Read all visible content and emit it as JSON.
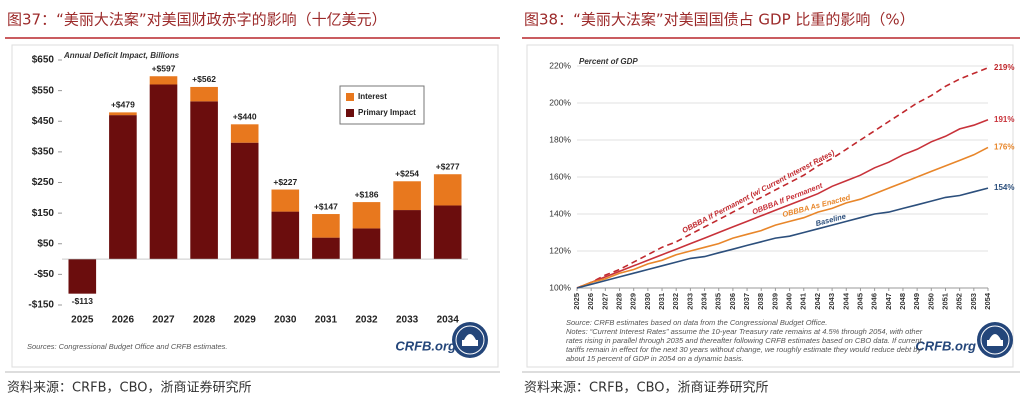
{
  "chart_data": [
    {
      "type": "bar",
      "title": "图37：“美丽大法案”对美国财政赤字的影响（十亿美元）",
      "subtitle": "Annual Deficit Impact, Billions",
      "categories": [
        "2025",
        "2026",
        "2027",
        "2028",
        "2029",
        "2030",
        "2031",
        "2032",
        "2033",
        "2034"
      ],
      "series": [
        {
          "name": "Primary Impact",
          "color": "#6b0d0d",
          "values": [
            -113,
            470,
            570,
            515,
            380,
            155,
            70,
            100,
            160,
            175
          ]
        },
        {
          "name": "Interest",
          "color": "#e8781e",
          "values": [
            0,
            9,
            27,
            47,
            60,
            72,
            77,
            86,
            94,
            102
          ]
        }
      ],
      "totals": [
        -113,
        479,
        597,
        562,
        440,
        227,
        147,
        186,
        254,
        277
      ],
      "total_labels": [
        "-$113",
        "+$479",
        "+$597",
        "+$562",
        "+$440",
        "+$227",
        "+$147",
        "+$186",
        "+$254",
        "+$277"
      ],
      "ylim": [
        -150,
        650
      ],
      "yticks": [
        {
          "value": -150,
          "label": "-$150"
        },
        {
          "value": -50,
          "label": "-$50"
        },
        {
          "value": 50,
          "label": "$50"
        },
        {
          "value": 150,
          "label": "$150"
        },
        {
          "value": 250,
          "label": "$250"
        },
        {
          "value": 350,
          "label": "$350"
        },
        {
          "value": 450,
          "label": "$450"
        },
        {
          "value": 550,
          "label": "$550"
        },
        {
          "value": 650,
          "label": "$650"
        }
      ],
      "grid": false,
      "legend": "upper right",
      "source": "Sources: Congressional Budget Office and CRFB estimates.",
      "logo": "CRFB.org",
      "footer": "资料来源：CRFB，CBO，浙商证券研究所"
    },
    {
      "type": "line",
      "title": "图38：“美丽大法案”对美国国债占 GDP 比重的影响（%）",
      "subtitle": "Percent of GDP",
      "x": [
        2025,
        2026,
        2027,
        2028,
        2029,
        2030,
        2031,
        2032,
        2033,
        2034,
        2035,
        2036,
        2037,
        2038,
        2039,
        2040,
        2041,
        2042,
        2043,
        2044,
        2045,
        2046,
        2047,
        2048,
        2049,
        2050,
        2051,
        2052,
        2053,
        2054
      ],
      "xlim": [
        2025,
        2054
      ],
      "series": [
        {
          "name": "OBBBA If Permanent (w/ Current Interest Rates)",
          "color": "#c0282d",
          "dash": true,
          "end_label": "219%",
          "values": [
            100,
            103,
            107,
            110,
            114,
            118,
            122,
            125,
            129,
            133,
            137,
            141,
            145,
            149,
            153,
            157,
            161,
            166,
            170,
            175,
            180,
            185,
            190,
            195,
            200,
            204,
            209,
            213,
            216,
            219
          ]
        },
        {
          "name": "OBBBA If Permanent",
          "color": "#c8323a",
          "dash": false,
          "end_label": "191%",
          "values": [
            100,
            103,
            106,
            109,
            112,
            115,
            118,
            121,
            124,
            127,
            130,
            133,
            136,
            139,
            142,
            145,
            148,
            151,
            155,
            158,
            161,
            165,
            168,
            172,
            175,
            179,
            182,
            186,
            188,
            191
          ]
        },
        {
          "name": "OBBBA As Enacted",
          "color": "#e8862a",
          "dash": false,
          "end_label": "176%",
          "values": [
            100,
            103,
            105,
            108,
            110,
            113,
            115,
            118,
            120,
            122,
            124,
            127,
            129,
            131,
            134,
            136,
            138,
            141,
            143,
            146,
            148,
            151,
            154,
            157,
            160,
            163,
            166,
            169,
            172,
            176
          ]
        },
        {
          "name": "Baseline",
          "color": "#2c4f7c",
          "dash": false,
          "end_label": "154%",
          "values": [
            100,
            102,
            104,
            106,
            108,
            110,
            112,
            114,
            116,
            117,
            119,
            121,
            123,
            125,
            127,
            128,
            130,
            132,
            134,
            136,
            138,
            140,
            141,
            143,
            145,
            147,
            149,
            150,
            152,
            154
          ]
        }
      ],
      "ylim": [
        100,
        220
      ],
      "yticks": [
        {
          "value": 100,
          "label": "100%"
        },
        {
          "value": 120,
          "label": "120%"
        },
        {
          "value": 140,
          "label": "140%"
        },
        {
          "value": 160,
          "label": "160%"
        },
        {
          "value": 180,
          "label": "180%"
        },
        {
          "value": 200,
          "label": "200%"
        },
        {
          "value": 220,
          "label": "220%"
        }
      ],
      "grid": true,
      "source": "Source: CRFB estimates based on data from the Congressional Budget Office.",
      "notes": "Notes: “Current Interest Rates” assume the 10-year Treasury rate remains at 4.5% through 2054, with other rates rising in parallel through 2035 and thereafter following CRFB estimates based on CBO data. If current tariffs remain in effect for the next 30 years without change, we roughly estimate they would reduce debt by about 15 percent of GDP in 2054 on a dynamic basis.",
      "logo": "CRFB.org",
      "footer": "资料来源：CRFB，CBO，浙商证券研究所"
    }
  ]
}
